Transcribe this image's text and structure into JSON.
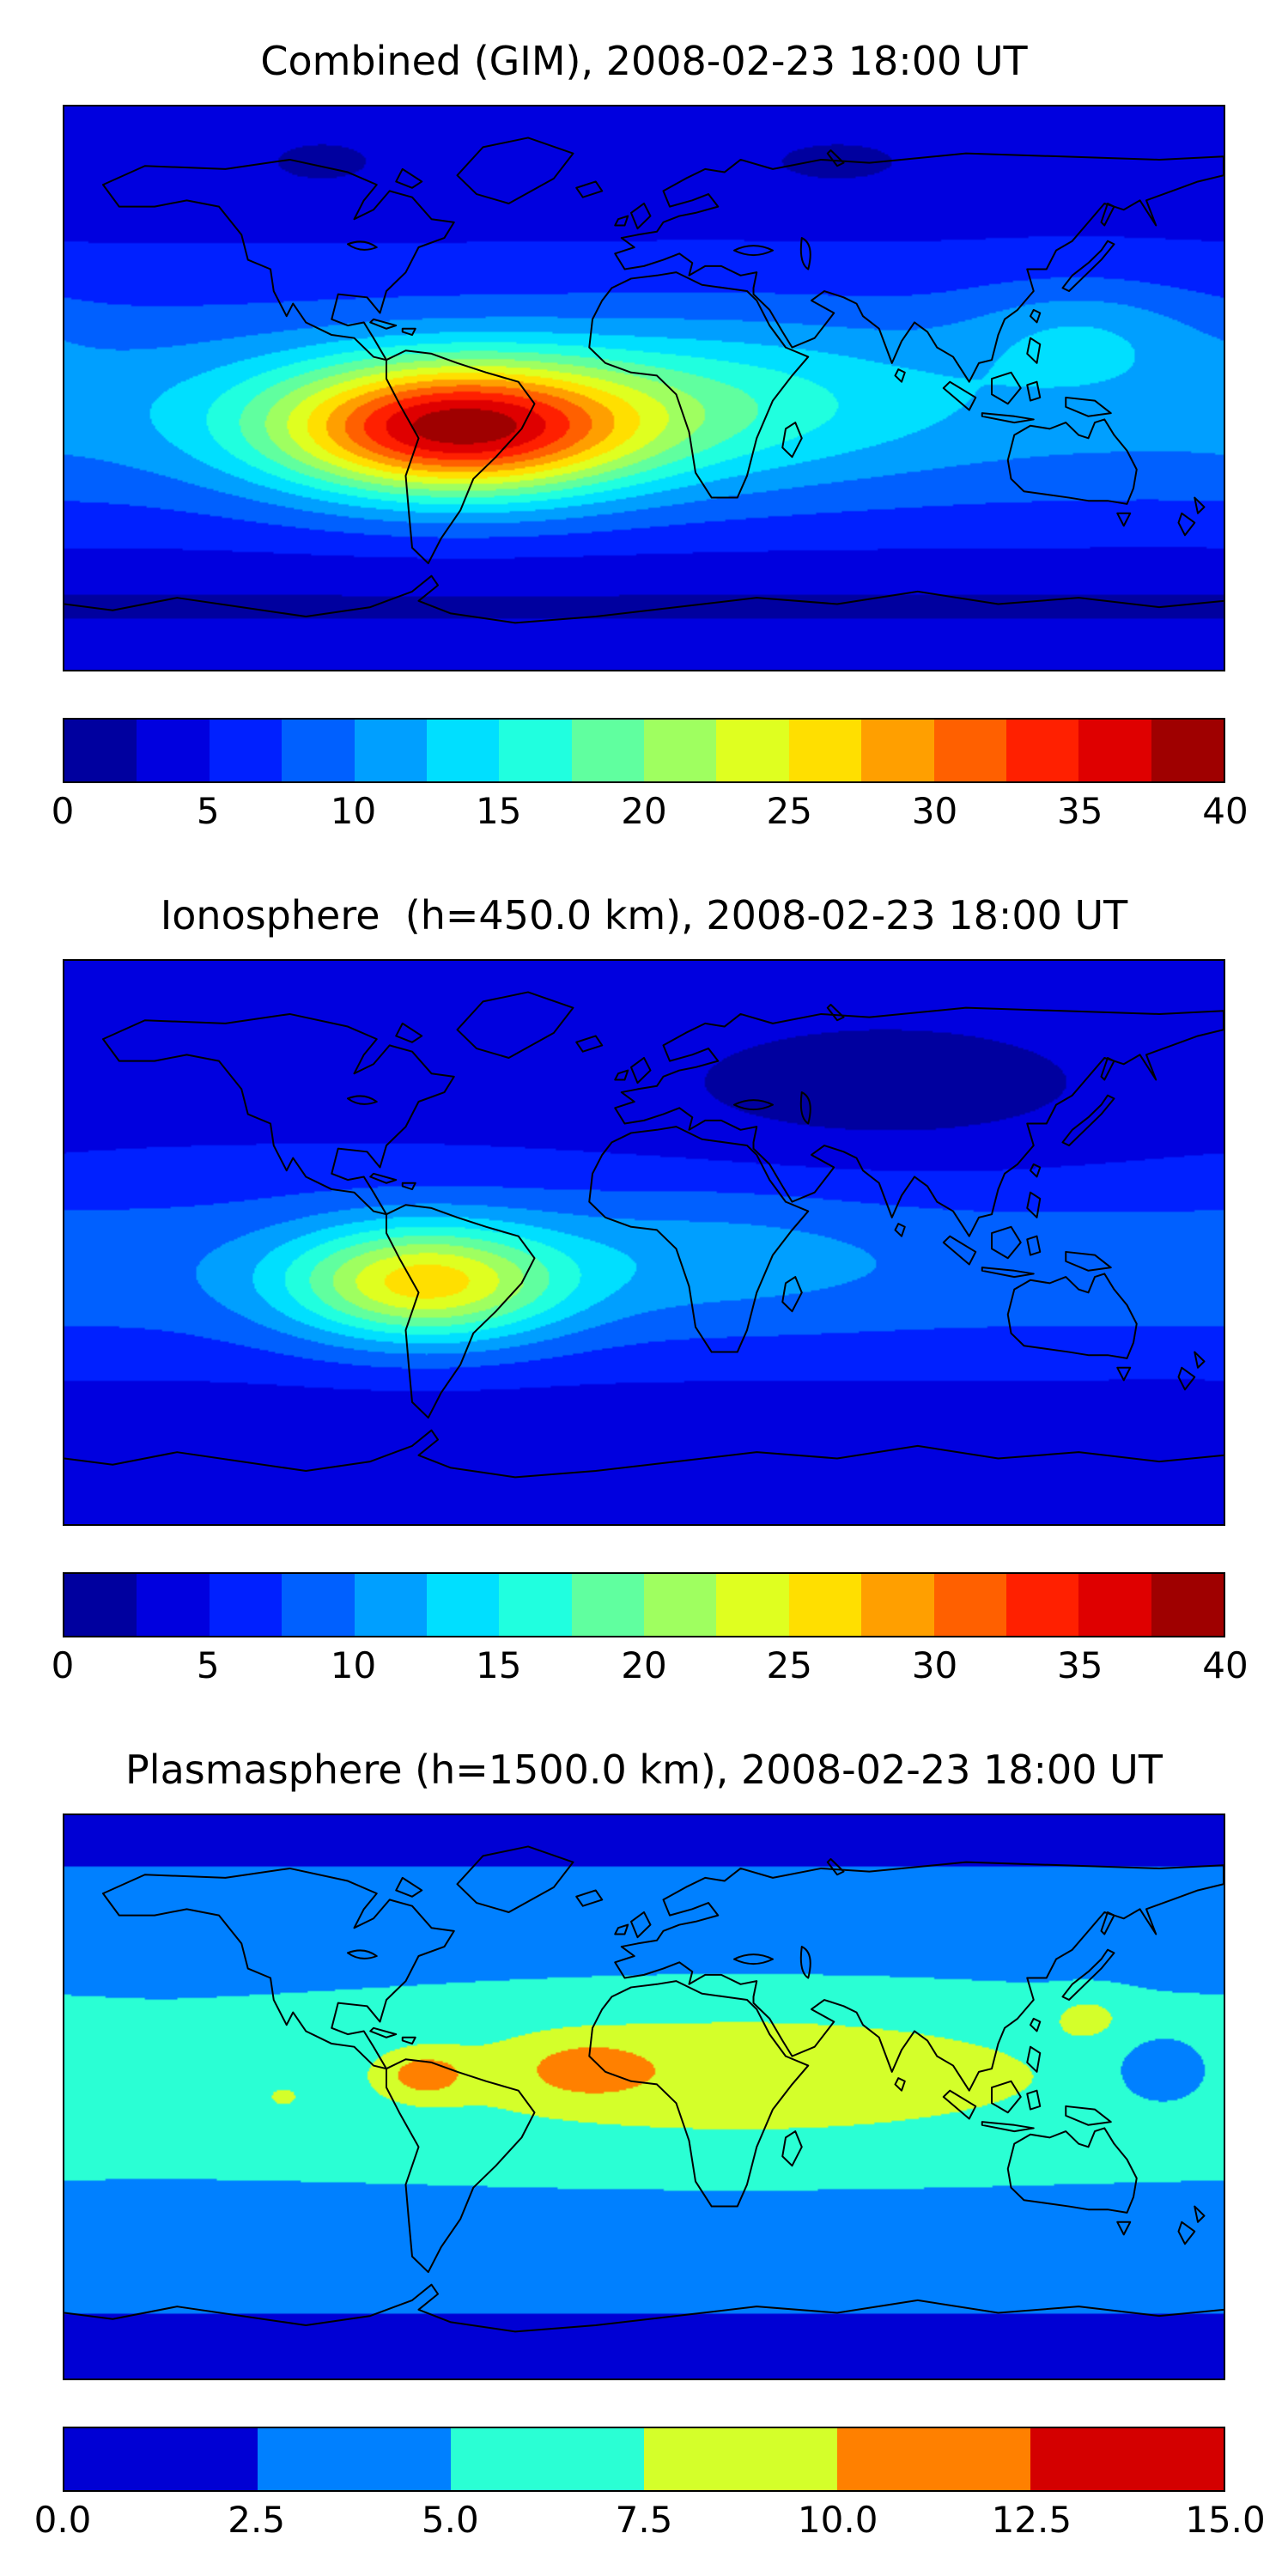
{
  "figure": {
    "background_color": "#ffffff",
    "coastline_color": "#000000",
    "text_color": "#000000",
    "panel_count": 3
  },
  "chart_data": [
    {
      "type": "heatmap",
      "title": "Combined (GIM), 2008-02-23 18:00 UT",
      "projection": "equirectangular",
      "lon_range": [
        -180,
        180
      ],
      "lat_range": [
        -90,
        90
      ],
      "axis_tick_labels": "none (frame only)",
      "colormap": "jet",
      "levels": {
        "min": 0,
        "max": 40,
        "step": 2.5
      },
      "colorbar_ticks": [
        "0",
        "5",
        "10",
        "15",
        "20",
        "25",
        "30",
        "35",
        "40"
      ],
      "segment_colors": [
        "#00009F",
        "#0000DF",
        "#0020FF",
        "#0060FF",
        "#009FFF",
        "#00DFFF",
        "#20FFDF",
        "#60FF9F",
        "#9FFF60",
        "#DFFF20",
        "#FFDF00",
        "#FF9F00",
        "#FF6000",
        "#FF2000",
        "#DF0000",
        "#9F0000"
      ],
      "field_model": {
        "base": 4,
        "lat_bands": [
          {
            "center": -5,
            "sigma": 26,
            "amp": 7
          },
          {
            "center": -68,
            "sigma": 10,
            "amp": -2
          }
        ],
        "blobs": [
          {
            "lon": -58,
            "lat": -13,
            "slon": 40,
            "slat": 15,
            "amp": 28
          },
          {
            "lon": 25,
            "lat": -5,
            "slon": 45,
            "slat": 18,
            "amp": 5
          },
          {
            "lon": 135,
            "lat": 18,
            "slon": 25,
            "slat": 12,
            "amp": 4
          },
          {
            "lon": -100,
            "lat": 72,
            "slon": 20,
            "slat": 8,
            "amp": -2
          },
          {
            "lon": 60,
            "lat": 72,
            "slon": 25,
            "slat": 8,
            "amp": -2
          }
        ]
      },
      "notable_features": [
        "Strong TEC maximum ~38-40 with small dark-red core over central South America near 60W 15S",
        "Orange/yellow halo elongated east-west from the eastern Pacific across Brazil into the South Atlantic",
        "Moderate values 10-20 along equatorial Africa and the Indian Ocean",
        "Low values 0-5 at high northern latitudes and near 65S"
      ]
    },
    {
      "type": "heatmap",
      "title": "Ionosphere  (h=450.0 km), 2008-02-23 18:00 UT",
      "projection": "equirectangular",
      "lon_range": [
        -180,
        180
      ],
      "lat_range": [
        -90,
        90
      ],
      "axis_tick_labels": "none (frame only)",
      "colormap": "jet",
      "levels": {
        "min": 0,
        "max": 40,
        "step": 2.5
      },
      "colorbar_ticks": [
        "0",
        "5",
        "10",
        "15",
        "20",
        "25",
        "30",
        "35",
        "40"
      ],
      "segment_colors": [
        "#00009F",
        "#0000DF",
        "#0020FF",
        "#0060FF",
        "#009FFF",
        "#00DFFF",
        "#20FFDF",
        "#60FF9F",
        "#9FFF60",
        "#DFFF20",
        "#FFDF00",
        "#FF9F00",
        "#FF6000",
        "#FF2000",
        "#DF0000",
        "#9F0000"
      ],
      "field_model": {
        "base": 4,
        "lat_bands": [
          {
            "center": -8,
            "sigma": 22,
            "amp": 5
          },
          {
            "center": -65,
            "sigma": 12,
            "amp": -1.5
          }
        ],
        "blobs": [
          {
            "lon": -68,
            "lat": -13,
            "slon": 30,
            "slat": 13,
            "amp": 17.5
          },
          {
            "lon": 75,
            "lat": 48,
            "slon": 55,
            "slat": 18,
            "amp": -2.8
          },
          {
            "lon": 20,
            "lat": -3,
            "slon": 40,
            "slat": 15,
            "amp": 2.5
          }
        ]
      },
      "notable_features": [
        "Yellow ionospheric peak ~25-27 over Peru/Bolivia near 68W 13S with green-cyan halo",
        "Very low values <2.5 (dark navy) over Europe and central/eastern Asia",
        "Medium blue values over the equatorial Pacific and Atlantic"
      ]
    },
    {
      "type": "heatmap",
      "title": "Plasmasphere (h=1500.0 km), 2008-02-23 18:00 UT",
      "projection": "equirectangular",
      "lon_range": [
        -180,
        180
      ],
      "lat_range": [
        -90,
        90
      ],
      "axis_tick_labels": "none (frame only)",
      "colormap": "jet",
      "levels": {
        "min": 0,
        "max": 15,
        "step": 2.5
      },
      "colorbar_ticks": [
        "0.0",
        "2.5",
        "5.0",
        "7.5",
        "10.0",
        "12.5",
        "15.0"
      ],
      "segment_colors": [
        "#0000D4",
        "#0080FF",
        "#2AFFD4",
        "#D4FF2A",
        "#FF8000",
        "#D40000"
      ],
      "field_model": {
        "base": 1.2,
        "lat_bands": [
          {
            "center": 2,
            "sigma": 45,
            "amp": 4.6
          }
        ],
        "blobs": [
          {
            "lon": 30,
            "lat": 8,
            "slon": 75,
            "slat": 16,
            "amp": 3.6
          },
          {
            "lon": -68,
            "lat": 7,
            "slon": 9,
            "slat": 5,
            "amp": 4.5
          },
          {
            "lon": -18,
            "lat": 9,
            "slon": 13,
            "slat": 6,
            "amp": 3.4
          },
          {
            "lon": 138,
            "lat": 26,
            "slon": 8,
            "slat": 5,
            "amp": 2.6
          },
          {
            "lon": 160,
            "lat": 8,
            "slon": 10,
            "slat": 7,
            "amp": -3.6
          },
          {
            "lon": -112,
            "lat": 0,
            "slon": 3,
            "slat": 2,
            "amp": 2.4
          }
        ]
      },
      "notable_features": [
        "Latitudinal band structure: aqua 5-7.5 across low latitudes, royal blue toward the poles",
        "Yellow-green band 7.5-10 stretching from Brazil across Africa to southeast Asia",
        "Orange maxima 10-12.5 near 68W 7N (northern South America) and over the eastern tropical Atlantic near 18W 9N",
        "Small yellow-green spot near Japan and a localized blue minimum in the western Pacific near 160E 8N"
      ]
    }
  ]
}
